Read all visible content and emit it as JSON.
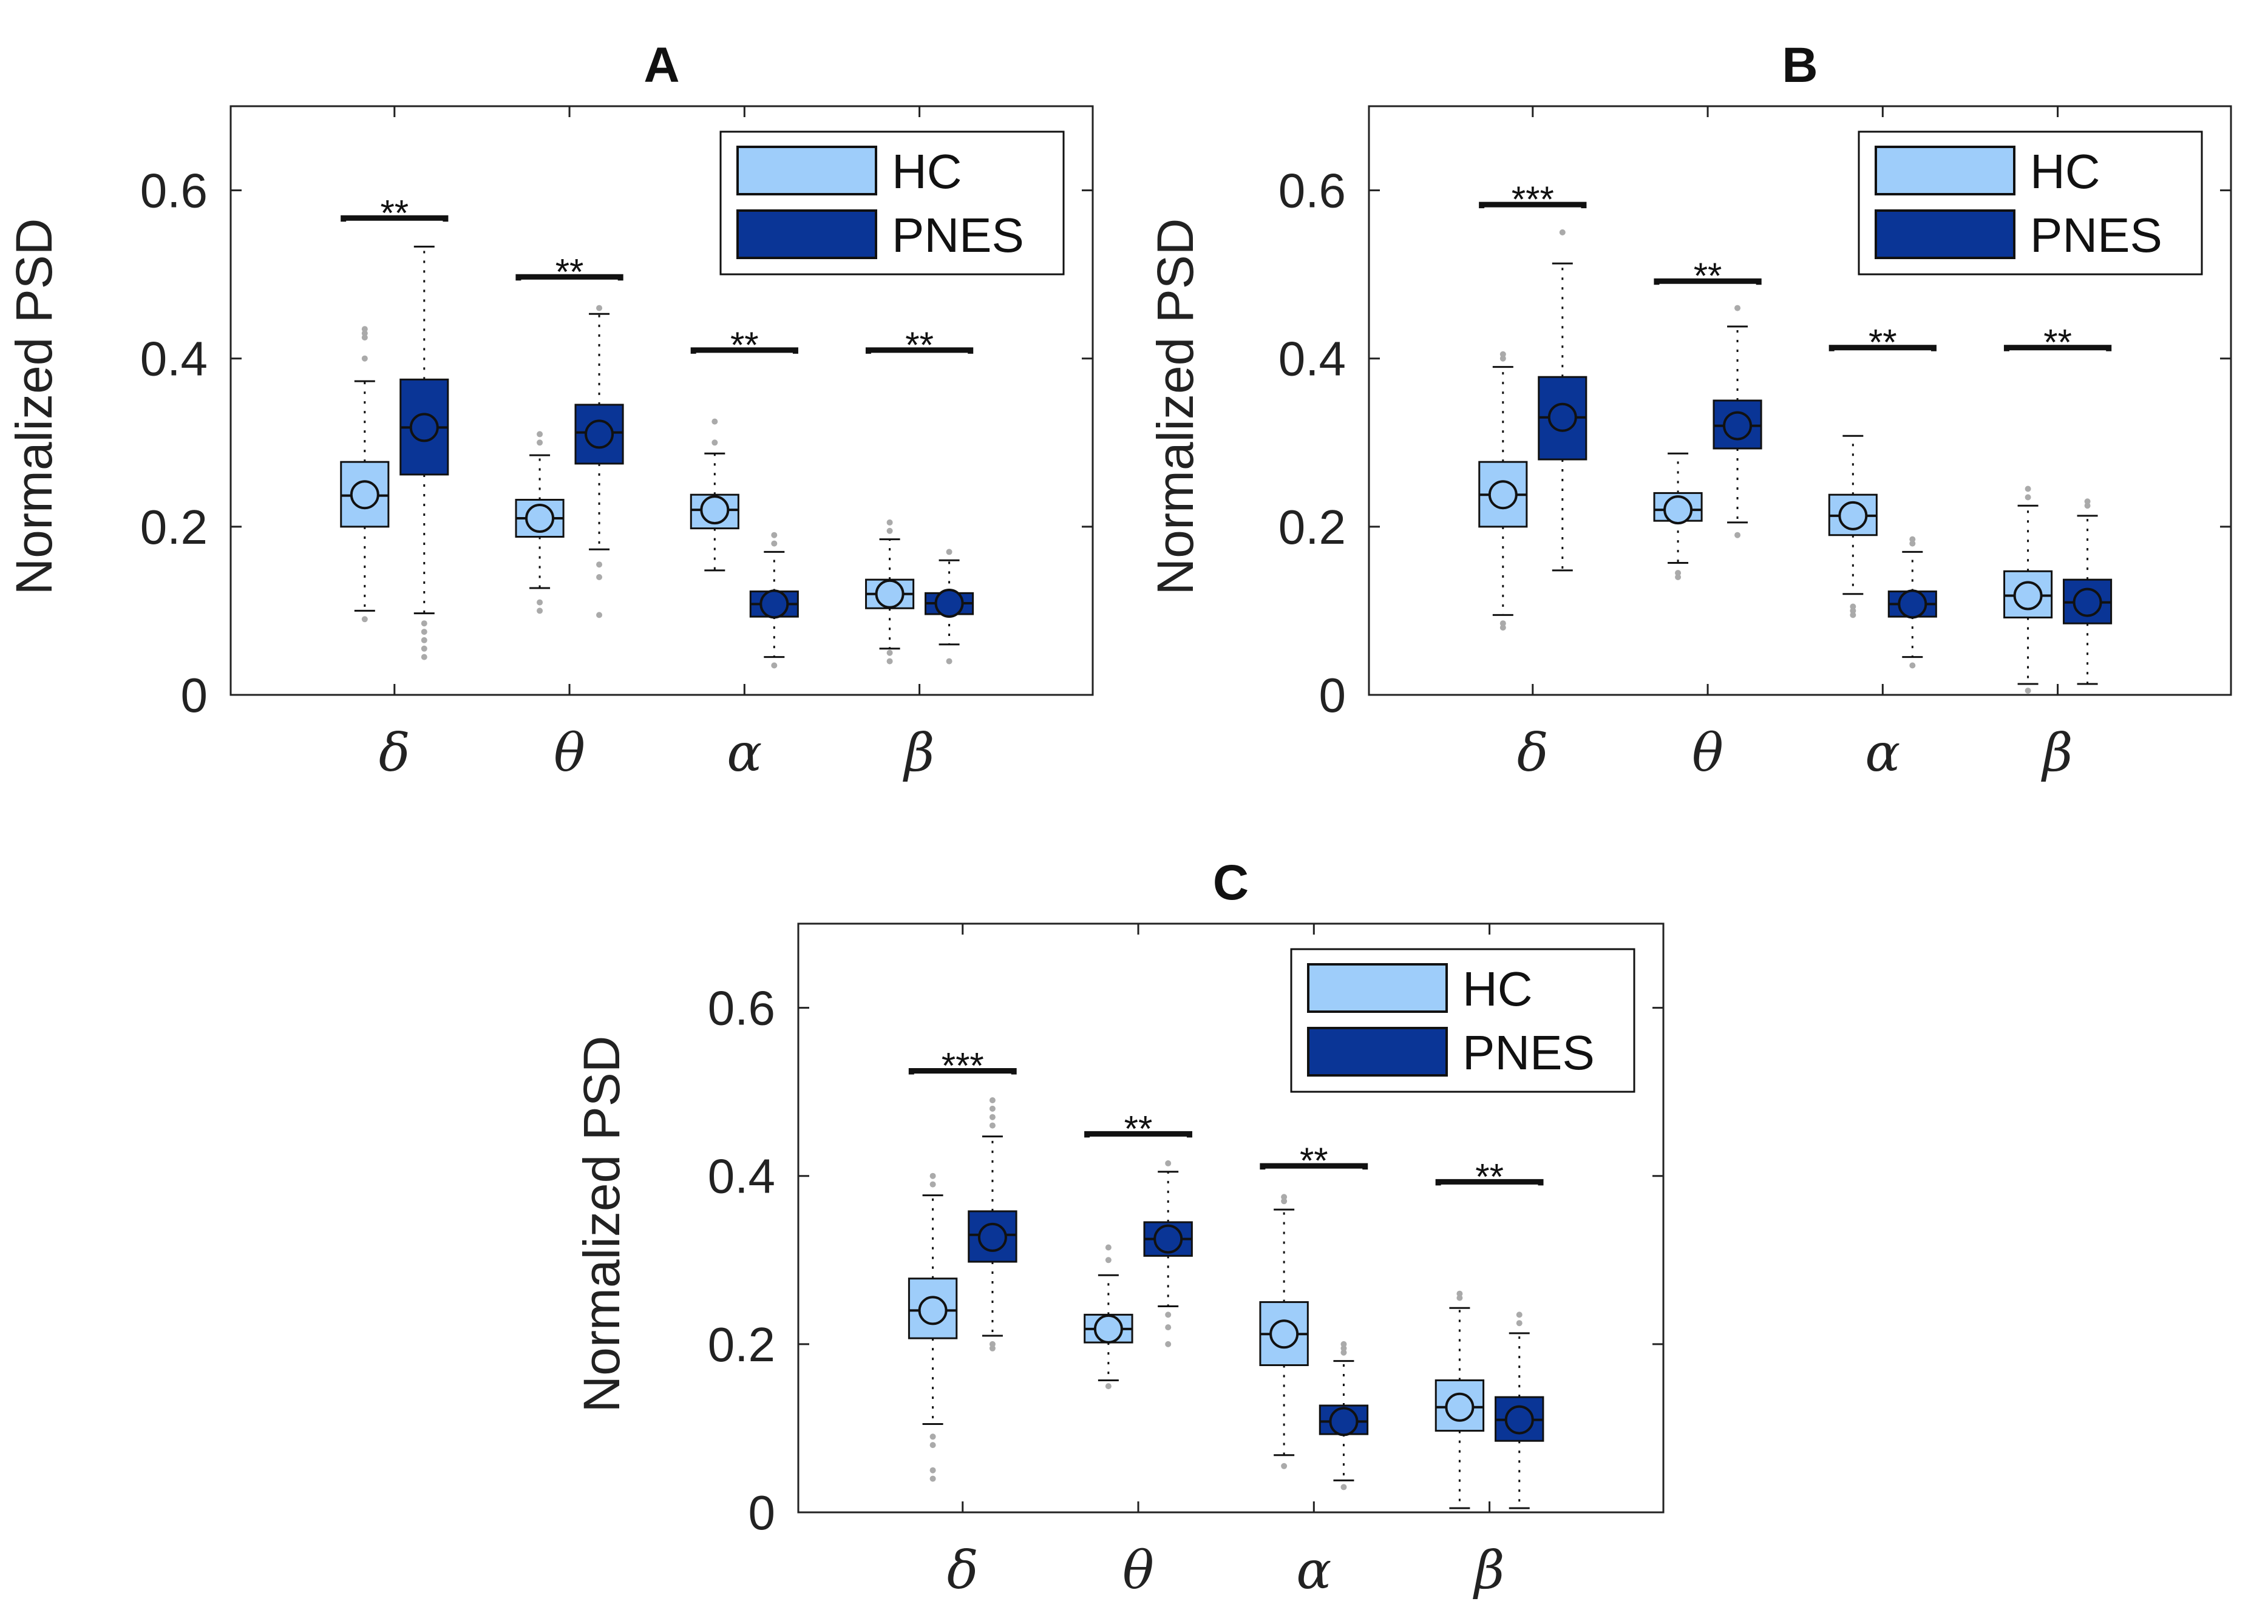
{
  "colors": {
    "HC": "#9ecdfa",
    "PNES": "#0a3596",
    "outlier": "#aaaaaa",
    "axis": "#222222"
  },
  "chart_data": [
    {
      "type": "box",
      "title": "A",
      "ylabel": "Normalized  PSD",
      "ylim": [
        0,
        0.7
      ],
      "yticks": [
        "0",
        "0.2",
        "0.4",
        "0.6"
      ],
      "categories": [
        "δ",
        "θ",
        "α",
        "β"
      ],
      "legend": {
        "position": "top-right",
        "entries": [
          "HC",
          "PNES"
        ]
      },
      "series": [
        {
          "name": "HC",
          "boxes": [
            {
              "q1": 0.2,
              "median": 0.237,
              "q3": 0.277,
              "mean": 0.238,
              "whisker_low": 0.1,
              "whisker_high": 0.373,
              "outliers": [
                0.09,
                0.4,
                0.425,
                0.43,
                0.435
              ]
            },
            {
              "q1": 0.188,
              "median": 0.21,
              "q3": 0.232,
              "mean": 0.21,
              "whisker_low": 0.127,
              "whisker_high": 0.285,
              "outliers": [
                0.1,
                0.11,
                0.3,
                0.31
              ]
            },
            {
              "q1": 0.198,
              "median": 0.22,
              "q3": 0.238,
              "mean": 0.22,
              "whisker_low": 0.148,
              "whisker_high": 0.287,
              "outliers": [
                0.3,
                0.325
              ]
            },
            {
              "q1": 0.103,
              "median": 0.12,
              "q3": 0.137,
              "mean": 0.12,
              "whisker_low": 0.055,
              "whisker_high": 0.185,
              "outliers": [
                0.04,
                0.05,
                0.195,
                0.205
              ]
            }
          ]
        },
        {
          "name": "PNES",
          "boxes": [
            {
              "q1": 0.262,
              "median": 0.318,
              "q3": 0.375,
              "mean": 0.318,
              "whisker_low": 0.097,
              "whisker_high": 0.533,
              "outliers": [
                0.045,
                0.055,
                0.065,
                0.075,
                0.085
              ]
            },
            {
              "q1": 0.275,
              "median": 0.312,
              "q3": 0.345,
              "mean": 0.31,
              "whisker_low": 0.173,
              "whisker_high": 0.453,
              "outliers": [
                0.095,
                0.14,
                0.155,
                0.46
              ]
            },
            {
              "q1": 0.093,
              "median": 0.108,
              "q3": 0.123,
              "mean": 0.108,
              "whisker_low": 0.045,
              "whisker_high": 0.17,
              "outliers": [
                0.035,
                0.18,
                0.19
              ]
            },
            {
              "q1": 0.096,
              "median": 0.109,
              "q3": 0.121,
              "mean": 0.109,
              "whisker_low": 0.06,
              "whisker_high": 0.16,
              "outliers": [
                0.04,
                0.17
              ]
            }
          ]
        }
      ],
      "significance": [
        {
          "category": 0,
          "label": "**",
          "y": 0.567
        },
        {
          "category": 1,
          "label": "**",
          "y": 0.497
        },
        {
          "category": 2,
          "label": "**",
          "y": 0.41
        },
        {
          "category": 3,
          "label": "**",
          "y": 0.41
        }
      ]
    },
    {
      "type": "box",
      "title": "B",
      "ylabel": "Normalized  PSD",
      "ylim": [
        0,
        0.7
      ],
      "yticks": [
        "0",
        "0.2",
        "0.4",
        "0.6"
      ],
      "categories": [
        "δ",
        "θ",
        "α",
        "β"
      ],
      "legend": {
        "position": "top-right",
        "entries": [
          "HC",
          "PNES"
        ]
      },
      "series": [
        {
          "name": "HC",
          "boxes": [
            {
              "q1": 0.2,
              "median": 0.238,
              "q3": 0.277,
              "mean": 0.238,
              "whisker_low": 0.095,
              "whisker_high": 0.39,
              "outliers": [
                0.08,
                0.085,
                0.4,
                0.405
              ]
            },
            {
              "q1": 0.207,
              "median": 0.22,
              "q3": 0.24,
              "mean": 0.22,
              "whisker_low": 0.157,
              "whisker_high": 0.287,
              "outliers": [
                0.14,
                0.145
              ]
            },
            {
              "q1": 0.19,
              "median": 0.213,
              "q3": 0.238,
              "mean": 0.213,
              "whisker_low": 0.12,
              "whisker_high": 0.308,
              "outliers": [
                0.095,
                0.1,
                0.105
              ]
            },
            {
              "q1": 0.092,
              "median": 0.118,
              "q3": 0.147,
              "mean": 0.118,
              "whisker_low": 0.013,
              "whisker_high": 0.225,
              "outliers": [
                0.005,
                0.235,
                0.245
              ]
            }
          ]
        },
        {
          "name": "PNES",
          "boxes": [
            {
              "q1": 0.28,
              "median": 0.33,
              "q3": 0.378,
              "mean": 0.33,
              "whisker_low": 0.148,
              "whisker_high": 0.513,
              "outliers": [
                0.55
              ]
            },
            {
              "q1": 0.293,
              "median": 0.32,
              "q3": 0.35,
              "mean": 0.32,
              "whisker_low": 0.205,
              "whisker_high": 0.438,
              "outliers": [
                0.19,
                0.46
              ]
            },
            {
              "q1": 0.093,
              "median": 0.108,
              "q3": 0.123,
              "mean": 0.108,
              "whisker_low": 0.045,
              "whisker_high": 0.17,
              "outliers": [
                0.035,
                0.18,
                0.185
              ]
            },
            {
              "q1": 0.085,
              "median": 0.11,
              "q3": 0.137,
              "mean": 0.11,
              "whisker_low": 0.013,
              "whisker_high": 0.213,
              "outliers": [
                0.225,
                0.23
              ]
            }
          ]
        }
      ],
      "significance": [
        {
          "category": 0,
          "label": "***",
          "y": 0.583
        },
        {
          "category": 1,
          "label": "**",
          "y": 0.492
        },
        {
          "category": 2,
          "label": "**",
          "y": 0.413
        },
        {
          "category": 3,
          "label": "**",
          "y": 0.413
        }
      ]
    },
    {
      "type": "box",
      "title": "C",
      "ylabel": "Normalized  PSD",
      "ylim": [
        0,
        0.7
      ],
      "yticks": [
        "0",
        "0.2",
        "0.4",
        "0.6"
      ],
      "categories": [
        "δ",
        "θ",
        "α",
        "β"
      ],
      "legend": {
        "position": "top-right",
        "entries": [
          "HC",
          "PNES"
        ]
      },
      "series": [
        {
          "name": "HC",
          "boxes": [
            {
              "q1": 0.207,
              "median": 0.24,
              "q3": 0.278,
              "mean": 0.24,
              "whisker_low": 0.105,
              "whisker_high": 0.377,
              "outliers": [
                0.04,
                0.05,
                0.08,
                0.09,
                0.39,
                0.4
              ]
            },
            {
              "q1": 0.202,
              "median": 0.218,
              "q3": 0.235,
              "mean": 0.218,
              "whisker_low": 0.157,
              "whisker_high": 0.282,
              "outliers": [
                0.15,
                0.3,
                0.315
              ]
            },
            {
              "q1": 0.175,
              "median": 0.212,
              "q3": 0.25,
              "mean": 0.212,
              "whisker_low": 0.068,
              "whisker_high": 0.36,
              "outliers": [
                0.055,
                0.37,
                0.375
              ]
            },
            {
              "q1": 0.097,
              "median": 0.125,
              "q3": 0.157,
              "mean": 0.125,
              "whisker_low": 0.005,
              "whisker_high": 0.243,
              "outliers": [
                0.255,
                0.26
              ]
            }
          ]
        },
        {
          "name": "PNES",
          "boxes": [
            {
              "q1": 0.298,
              "median": 0.33,
              "q3": 0.358,
              "mean": 0.327,
              "whisker_low": 0.21,
              "whisker_high": 0.447,
              "outliers": [
                0.195,
                0.2,
                0.46,
                0.47,
                0.48,
                0.49
              ]
            },
            {
              "q1": 0.305,
              "median": 0.325,
              "q3": 0.345,
              "mean": 0.325,
              "whisker_low": 0.245,
              "whisker_high": 0.405,
              "outliers": [
                0.2,
                0.22,
                0.235,
                0.415
              ]
            },
            {
              "q1": 0.093,
              "median": 0.108,
              "q3": 0.127,
              "mean": 0.108,
              "whisker_low": 0.038,
              "whisker_high": 0.18,
              "outliers": [
                0.03,
                0.19,
                0.195,
                0.2
              ]
            },
            {
              "q1": 0.085,
              "median": 0.11,
              "q3": 0.137,
              "mean": 0.11,
              "whisker_low": 0.005,
              "whisker_high": 0.213,
              "outliers": [
                0.225,
                0.235
              ]
            }
          ]
        }
      ],
      "significance": [
        {
          "category": 0,
          "label": "***",
          "y": 0.525
        },
        {
          "category": 1,
          "label": "**",
          "y": 0.45
        },
        {
          "category": 2,
          "label": "**",
          "y": 0.412
        },
        {
          "category": 3,
          "label": "**",
          "y": 0.393
        }
      ]
    }
  ]
}
